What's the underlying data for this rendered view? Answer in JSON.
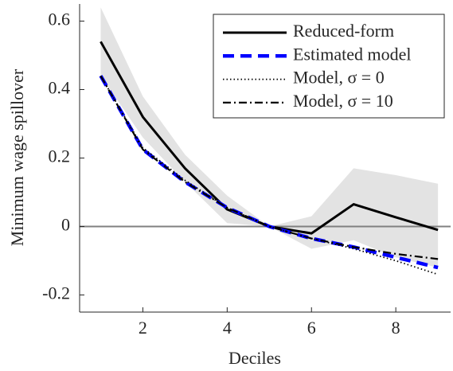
{
  "chart_data": {
    "type": "line",
    "xlabel": "Deciles",
    "ylabel": "Minimum wage spillover",
    "x": [
      1,
      2,
      3,
      4,
      5,
      6,
      7,
      8,
      9
    ],
    "xlim": [
      0.5,
      9.3
    ],
    "xticks": [
      2,
      4,
      6,
      8
    ],
    "ylim": [
      -0.25,
      0.65
    ],
    "yticks": [
      0.6,
      0.4,
      0.2,
      0,
      -0.2
    ],
    "reference_line": {
      "value": 0,
      "color": "#808080"
    },
    "band": {
      "color": "#e3e3e3",
      "upper": [
        0.64,
        0.38,
        0.21,
        0.09,
        0.0,
        0.03,
        0.17,
        0.15,
        0.125
      ],
      "lower": [
        0.44,
        0.26,
        0.13,
        0.01,
        0.0,
        -0.065,
        -0.04,
        -0.09,
        -0.12
      ]
    },
    "legend_position": "upper right",
    "series": [
      {
        "name": "Reduced-form",
        "color": "#000000",
        "style": "solid",
        "values": [
          0.54,
          0.32,
          0.17,
          0.05,
          0.0,
          -0.02,
          0.065,
          0.027,
          -0.01
        ]
      },
      {
        "name": "Estimated model",
        "color": "#0000ff",
        "style": "dashed",
        "values": [
          0.44,
          0.225,
          0.13,
          0.055,
          0.0,
          -0.035,
          -0.06,
          -0.09,
          -0.12
        ]
      },
      {
        "name": "Model, σ = 0",
        "color": "#000000",
        "style": "dotted",
        "values": [
          0.44,
          0.23,
          0.135,
          0.055,
          0.0,
          -0.035,
          -0.065,
          -0.1,
          -0.14
        ]
      },
      {
        "name": "Model, σ = 10",
        "color": "#000000",
        "style": "dashdot",
        "values": [
          0.44,
          0.225,
          0.13,
          0.055,
          0.0,
          -0.035,
          -0.06,
          -0.08,
          -0.095
        ]
      }
    ]
  }
}
